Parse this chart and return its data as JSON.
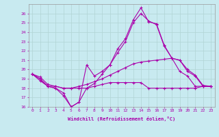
{
  "background_color": "#c8eaf0",
  "grid_color": "#b0d4d4",
  "line_color": "#aa00aa",
  "xlim": [
    -0.5,
    23.5
  ],
  "ylim": [
    16,
    27
  ],
  "xticks": [
    0,
    1,
    2,
    3,
    4,
    5,
    6,
    7,
    8,
    9,
    10,
    11,
    12,
    13,
    14,
    15,
    16,
    17,
    18,
    19,
    20,
    21,
    22,
    23
  ],
  "yticks": [
    16,
    17,
    18,
    19,
    20,
    21,
    22,
    23,
    24,
    25,
    26
  ],
  "xlabel": "Windchill (Refroidissement éolien,°C)",
  "line1_x": [
    0,
    1,
    2,
    3,
    4,
    5,
    6,
    7,
    8,
    9,
    10,
    11,
    12,
    13,
    14,
    15,
    16,
    17,
    18,
    19,
    20,
    21,
    22,
    23
  ],
  "line1_y": [
    19.5,
    19.0,
    18.2,
    18.0,
    17.5,
    16.0,
    16.5,
    20.5,
    19.3,
    19.8,
    20.5,
    21.8,
    23.0,
    25.0,
    26.0,
    25.2,
    24.8,
    22.5,
    21.2,
    19.8,
    19.3,
    18.2,
    18.2,
    18.2
  ],
  "line2_x": [
    0,
    1,
    2,
    3,
    4,
    5,
    6,
    7,
    8,
    9,
    10,
    11,
    12,
    13,
    14,
    15,
    16,
    17,
    18,
    19,
    20,
    21,
    22,
    23
  ],
  "line2_y": [
    19.5,
    19.0,
    18.2,
    18.0,
    17.2,
    16.0,
    16.5,
    18.0,
    18.5,
    19.5,
    20.5,
    22.2,
    23.3,
    25.3,
    26.6,
    25.1,
    24.9,
    22.6,
    21.2,
    21.0,
    19.8,
    19.3,
    18.2,
    18.2
  ],
  "line3_x": [
    0,
    1,
    2,
    3,
    4,
    5,
    6,
    7,
    8,
    9,
    10,
    11,
    12,
    13,
    14,
    15,
    16,
    17,
    18,
    19,
    20,
    21,
    22,
    23
  ],
  "line3_y": [
    19.5,
    19.2,
    18.4,
    18.2,
    18.0,
    18.0,
    18.2,
    18.4,
    18.7,
    19.0,
    19.4,
    19.8,
    20.2,
    20.6,
    20.8,
    20.9,
    21.0,
    21.1,
    21.2,
    21.0,
    20.0,
    19.4,
    18.3,
    18.2
  ],
  "line4_x": [
    0,
    1,
    2,
    3,
    4,
    5,
    6,
    7,
    8,
    9,
    10,
    11,
    12,
    13,
    14,
    15,
    16,
    17,
    18,
    19,
    20,
    21,
    22,
    23
  ],
  "line4_y": [
    19.5,
    18.8,
    18.2,
    18.2,
    18.0,
    18.0,
    18.0,
    18.0,
    18.2,
    18.4,
    18.6,
    18.6,
    18.6,
    18.6,
    18.6,
    18.0,
    18.0,
    18.0,
    18.0,
    18.0,
    18.0,
    18.0,
    18.2,
    18.2
  ]
}
